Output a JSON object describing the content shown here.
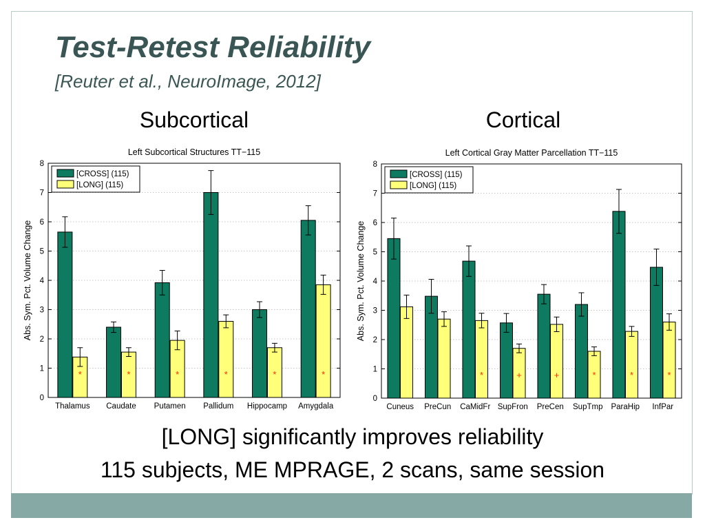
{
  "slide": {
    "title": "Test-Retest Reliability",
    "subtitle": "[Reuter et al., NeuroImage, 2012]",
    "left_label": "Subcortical",
    "right_label": "Cortical",
    "bottom_line1": "[LONG] significantly improves reliability",
    "bottom_line2": "115 subjects, ME MPRAGE, 2 scans, same session",
    "colors": {
      "title": "#3a5654",
      "cross": "#0e7a60",
      "long": "#ffff7a",
      "marker": "#ff2a00",
      "footer": "#86a9a6"
    }
  },
  "chart_data": [
    {
      "type": "bar",
      "title": "Left Subcortical Structures TT−115",
      "ylabel": "Abs. Sym. Pct. Volume Change",
      "xlabel": "",
      "ylim": [
        0,
        8
      ],
      "yticks": [
        "0",
        "1",
        "2",
        "3",
        "4",
        "5",
        "6",
        "7",
        "8"
      ],
      "grid": true,
      "legend_position": "top-left",
      "categories": [
        "Thalamus",
        "Caudate",
        "Putamen",
        "Pallidum",
        "Hippocamp",
        "Amygdala"
      ],
      "series": [
        {
          "name": "[CROSS] (115)",
          "values": [
            5.65,
            2.4,
            3.92,
            7.0,
            3.0,
            6.05
          ],
          "errors": [
            0.52,
            0.18,
            0.42,
            0.75,
            0.27,
            0.5
          ]
        },
        {
          "name": "[LONG] (115)",
          "values": [
            1.38,
            1.55,
            1.95,
            2.6,
            1.7,
            3.85
          ],
          "errors": [
            0.32,
            0.15,
            0.32,
            0.22,
            0.15,
            0.33
          ]
        }
      ],
      "significance_markers": [
        "*",
        "*",
        "*",
        "*",
        "*",
        "*"
      ]
    },
    {
      "type": "bar",
      "title": "Left Cortical Gray Matter Parcellation TT−115",
      "ylabel": "Abs. Sym. Pct. Volume Change",
      "xlabel": "",
      "ylim": [
        0,
        8
      ],
      "yticks": [
        "0",
        "1",
        "2",
        "3",
        "4",
        "5",
        "6",
        "7",
        "8"
      ],
      "grid": true,
      "legend_position": "top-left",
      "categories": [
        "Cuneus",
        "PreCun",
        "CaMidFr",
        "SupFron",
        "PreCen",
        "SupTmp",
        "ParaHip",
        "InfPar"
      ],
      "series": [
        {
          "name": "[CROSS] (115)",
          "values": [
            5.45,
            3.48,
            4.68,
            2.57,
            3.55,
            3.2,
            6.38,
            4.47
          ],
          "errors": [
            0.7,
            0.58,
            0.52,
            0.32,
            0.33,
            0.4,
            0.75,
            0.62
          ]
        },
        {
          "name": "[LONG] (115)",
          "values": [
            3.12,
            2.7,
            2.65,
            1.7,
            2.52,
            1.6,
            2.28,
            2.6
          ],
          "errors": [
            0.4,
            0.25,
            0.25,
            0.15,
            0.25,
            0.15,
            0.17,
            0.28
          ]
        }
      ],
      "significance_markers": [
        "",
        "",
        "*",
        "+",
        "+",
        "*",
        "*",
        "*"
      ]
    }
  ]
}
